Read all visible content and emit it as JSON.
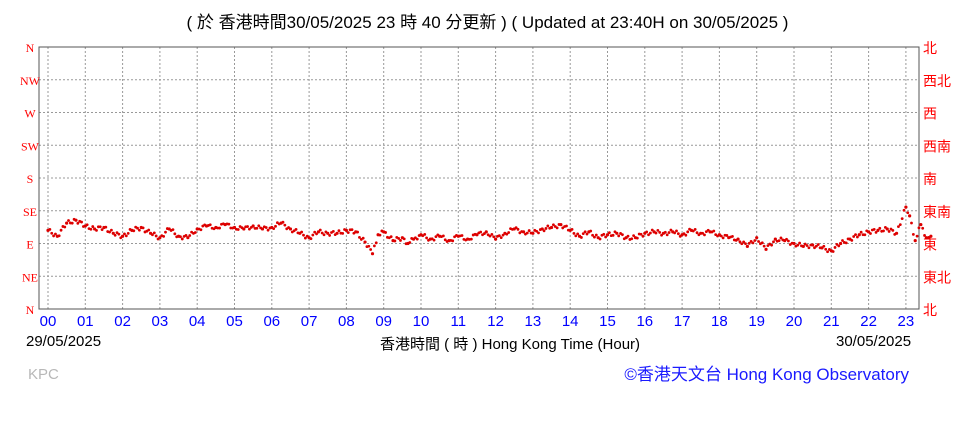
{
  "title": "( 於 香港時間30/05/2025 23 時 40 分更新 ) ( Updated at 23:40H on 30/05/2025 )",
  "date_left": "29/05/2025",
  "date_right": "30/05/2025",
  "x_axis_label": "香港時間 ( 時 )  Hong Kong Time (Hour)",
  "station": "KPC",
  "credit": "©香港天文台 Hong Kong Observatory",
  "colors": {
    "data": "#dd0000",
    "direction_labels": "#ff0000",
    "hour_labels": "#0000ff",
    "grid": "#999999",
    "credit": "#1a1aff"
  },
  "chart_data": {
    "type": "scatter",
    "title": "( 於 香港時間30/05/2025 23 時 40 分更新 ) ( Updated at 23:40H on 30/05/2025 )",
    "xlabel": "香港時間 ( 時 )  Hong Kong Time (Hour)",
    "ylabel": "",
    "x_ticks": [
      "00",
      "01",
      "02",
      "03",
      "04",
      "05",
      "06",
      "07",
      "08",
      "09",
      "10",
      "11",
      "12",
      "13",
      "14",
      "15",
      "16",
      "17",
      "18",
      "19",
      "20",
      "21",
      "22",
      "23"
    ],
    "xlim": [
      0,
      23.67
    ],
    "y_ticks_left": [
      "N",
      "NE",
      "E",
      "SE",
      "S",
      "SW",
      "W",
      "NW",
      "N"
    ],
    "y_ticks_right": [
      "北",
      "東北",
      "東",
      "東南",
      "南",
      "西南",
      "西",
      "西北",
      "北"
    ],
    "ylim": [
      0,
      360
    ],
    "grid": true,
    "series": [
      {
        "x": [
          0.0,
          0.25,
          0.5,
          0.75,
          1.0,
          1.25,
          1.5,
          1.75,
          2.0,
          2.25,
          2.5,
          2.75,
          3.0,
          3.25,
          3.5,
          3.75,
          4.0,
          4.25,
          4.5,
          4.75,
          5.0,
          5.25,
          5.5,
          5.75,
          6.0,
          6.25,
          6.5,
          6.75,
          7.0,
          7.25,
          7.5,
          7.75,
          8.0,
          8.25,
          8.5,
          8.7,
          8.85,
          9.0,
          9.25,
          9.5,
          9.65,
          9.8,
          10.0,
          10.25,
          10.5,
          10.75,
          11.0,
          11.25,
          11.5,
          11.75,
          12.0,
          12.25,
          12.5,
          12.75,
          13.0,
          13.25,
          13.5,
          13.75,
          14.0,
          14.25,
          14.5,
          14.75,
          15.0,
          15.25,
          15.5,
          15.75,
          16.0,
          16.25,
          16.5,
          16.75,
          17.0,
          17.25,
          17.5,
          17.75,
          18.0,
          18.25,
          18.5,
          18.75,
          19.0,
          19.25,
          19.5,
          19.75,
          20.0,
          20.25,
          20.5,
          20.75,
          21.0,
          21.25,
          21.5,
          21.75,
          22.0,
          22.25,
          22.5,
          22.75,
          23.0,
          23.1,
          23.25,
          23.4,
          23.55,
          23.67
        ],
        "y": [
          108,
          100,
          118,
          122,
          114,
          110,
          112,
          104,
          100,
          108,
          112,
          104,
          98,
          110,
          100,
          98,
          110,
          114,
          112,
          116,
          112,
          110,
          114,
          110,
          112,
          118,
          110,
          104,
          98,
          106,
          104,
          104,
          108,
          106,
          92,
          76,
          102,
          106,
          94,
          98,
          90,
          96,
          102,
          96,
          100,
          94,
          100,
          96,
          102,
          106,
          96,
          104,
          110,
          106,
          104,
          110,
          112,
          116,
          108,
          100,
          106,
          98,
          102,
          104,
          98,
          98,
          104,
          106,
          104,
          106,
          102,
          108,
          104,
          106,
          102,
          98,
          96,
          86,
          98,
          82,
          96,
          94,
          90,
          86,
          88,
          84,
          80,
          90,
          96,
          102,
          106,
          108,
          110,
          104,
          140,
          128,
          94,
          116,
          98,
          100
        ],
        "marker": "dot"
      }
    ]
  }
}
